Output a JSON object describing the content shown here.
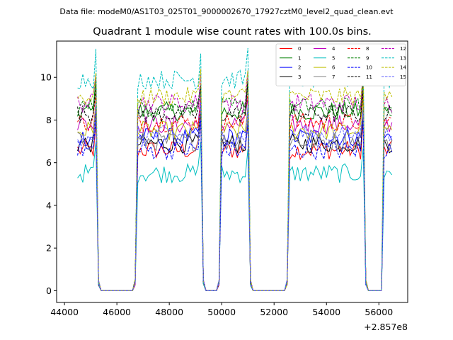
{
  "chart_data": {
    "type": "line",
    "suptitle": "Data file: modeM0/AS1T03_025T01_9000002670_17927cztM0_level2_quad_clean.evt",
    "title": "Quadrant 1 module wise count rates with 100.0s bins.",
    "xlabel": "",
    "ylabel": "",
    "x_offset_label": "+2.857e8",
    "xlim": [
      43700,
      57100
    ],
    "ylim": [
      -0.55,
      11.7
    ],
    "x_ticks": [
      44000,
      46000,
      48000,
      50000,
      52000,
      54000,
      56000
    ],
    "x_tick_labels": [
      "44000",
      "46000",
      "48000",
      "50000",
      "52000",
      "54000",
      "56000"
    ],
    "y_ticks": [
      0,
      2,
      4,
      6,
      8,
      10
    ],
    "y_tick_labels": [
      "0",
      "2",
      "4",
      "6",
      "8",
      "10"
    ],
    "legend_position": "top-right",
    "legend_columns": 4,
    "bin_size_s": 100,
    "segments": [
      {
        "x_start": 44500,
        "x_end": 45300,
        "rising": false,
        "falling": true
      },
      {
        "x_start": 45400,
        "x_end": 46600,
        "gap": true
      },
      {
        "x_start": 46700,
        "x_end": 49300,
        "rising": true,
        "falling": true
      },
      {
        "x_start": 49400,
        "x_end": 49800,
        "gap": true
      },
      {
        "x_start": 49900,
        "x_end": 51100,
        "rising": true,
        "falling": true
      },
      {
        "x_start": 51200,
        "x_end": 52400,
        "gap": true
      },
      {
        "x_start": 52500,
        "x_end": 55500,
        "rising": true,
        "falling": true
      },
      {
        "x_start": 55600,
        "x_end": 56100,
        "gap": true
      },
      {
        "x_start": 56200,
        "x_end": 56500,
        "rising": true,
        "falling": true
      }
    ],
    "series": [
      {
        "name": "0",
        "color": "#ff0000",
        "dash": "solid",
        "level": 6.6
      },
      {
        "name": "1",
        "color": "#008000",
        "dash": "solid",
        "level": 8.4
      },
      {
        "name": "2",
        "color": "#0000ff",
        "dash": "solid",
        "level": 7.2
      },
      {
        "name": "3",
        "color": "#000000",
        "dash": "solid",
        "level": 6.9
      },
      {
        "name": "4",
        "color": "#bf00bf",
        "dash": "solid",
        "level": 7.8
      },
      {
        "name": "5",
        "color": "#00bfbf",
        "dash": "solid",
        "level": 5.5
      },
      {
        "name": "6",
        "color": "#bfbf00",
        "dash": "solid",
        "level": 7.5
      },
      {
        "name": "7",
        "color": "#808080",
        "dash": "solid",
        "level": 7.0
      },
      {
        "name": "8",
        "color": "#ff0000",
        "dash": "dashed",
        "level": 7.9
      },
      {
        "name": "9",
        "color": "#008000",
        "dash": "dashed",
        "level": 8.6
      },
      {
        "name": "10",
        "color": "#0000ff",
        "dash": "dashed",
        "level": 6.6
      },
      {
        "name": "11",
        "color": "#000000",
        "dash": "dashed",
        "level": 8.3
      },
      {
        "name": "12",
        "color": "#bf00bf",
        "dash": "dashed",
        "level": 8.8
      },
      {
        "name": "13",
        "color": "#00bfbf",
        "dash": "dashed",
        "level": 9.9
      },
      {
        "name": "14",
        "color": "#bfbf00",
        "dash": "dashed",
        "level": 9.1
      },
      {
        "name": "15",
        "color": "#5f5fff",
        "dash": "dashed",
        "level": 7.3
      }
    ]
  }
}
